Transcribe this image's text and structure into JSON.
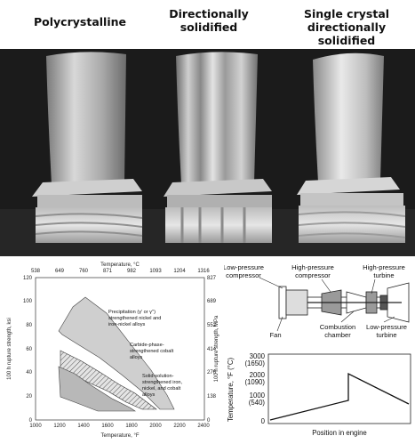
{
  "photo_titles": [
    {
      "lines": [
        "Polycrystalline"
      ]
    },
    {
      "lines": [
        "Directionally",
        "solidified"
      ]
    },
    {
      "lines": [
        "Single crystal",
        "directionally",
        "solidified"
      ]
    }
  ],
  "chart": {
    "top_axis_title": "Temperature, °C",
    "top_ticks": [
      "538",
      "649",
      "760",
      "871",
      "982",
      "1093",
      "1204",
      "1316"
    ],
    "bottom_axis_title": "Temperature, °F",
    "bottom_ticks": [
      "1000",
      "1200",
      "1400",
      "1600",
      "1800",
      "2000",
      "2200",
      "2400"
    ],
    "left_axis_title": "100 h rupture strength, ksi",
    "left_ticks": [
      "0",
      "20",
      "40",
      "60",
      "80",
      "100",
      "120"
    ],
    "right_axis_title": "100 h rupture strength, MPa",
    "right_ticks": [
      "0",
      "138",
      "276",
      "414",
      "552",
      "689",
      "827"
    ],
    "regions": [
      {
        "lines": [
          "Precipitation (γ' or γ'')",
          "strengthened nickel and",
          "iron-nickel alloys"
        ]
      },
      {
        "lines": [
          "Carbide-phase-",
          "strengthened cobalt",
          "alloys"
        ]
      },
      {
        "lines": [
          "Solid-solution-",
          "strengthened iron,",
          "nickel, and cobalt",
          "alloys"
        ]
      }
    ]
  },
  "engine": {
    "labels": {
      "lp_compressor": [
        "Low-pressure",
        "compressor"
      ],
      "hp_compressor": [
        "High-pressure",
        "compressor"
      ],
      "hp_turbine": [
        "High-pressure",
        "turbine"
      ],
      "fan": [
        "Fan"
      ],
      "combustion": [
        "Combustion",
        "chamber"
      ],
      "lp_turbine": [
        "Low-pressure",
        "turbine"
      ]
    }
  },
  "temp_plot": {
    "ylabel": "Temperature, °F (°C)",
    "xlabel": "Position in engine",
    "ticks": [
      {
        "f": "3000",
        "c": "(1650)"
      },
      {
        "f": "2000",
        "c": "(1090)"
      },
      {
        "f": "1000",
        "c": "(540)"
      },
      {
        "f": "0",
        "c": ""
      }
    ]
  },
  "colors": {
    "photo_bg": "#1b1b1b",
    "chart_fill_light": "#dcdcdc",
    "chart_fill_mid": "#b5b5b5"
  }
}
